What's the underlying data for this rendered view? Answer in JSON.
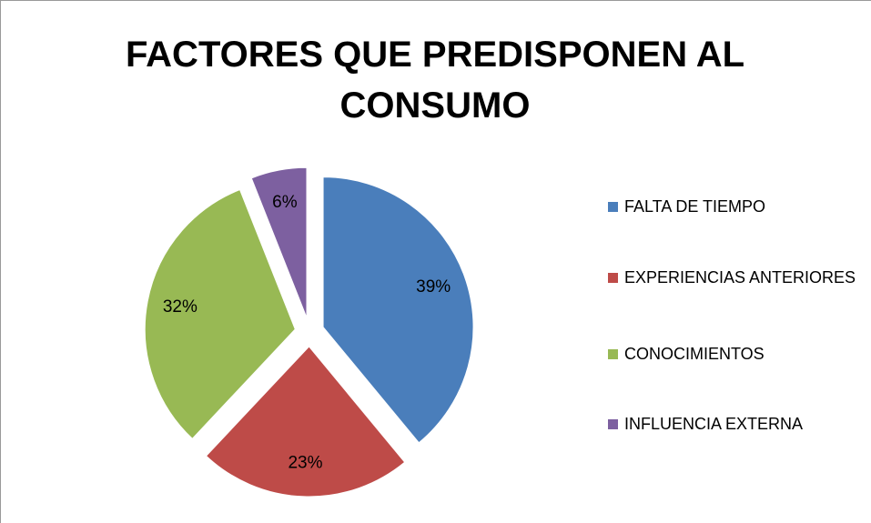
{
  "chart_data": {
    "type": "pie",
    "title": "FACTORES QUE PREDISPONEN AL CONSUMO",
    "categories": [
      "FALTA DE TIEMPO",
      "EXPERIENCIAS ANTERIORES",
      "CONOCIMIENTOS",
      "INFLUENCIA EXTERNA"
    ],
    "values": [
      39,
      23,
      32,
      6
    ],
    "value_labels": [
      "39%",
      "23%",
      "32%",
      "6%"
    ],
    "colors": [
      "#4a7ebb",
      "#be4b48",
      "#98b954",
      "#7d60a0"
    ],
    "legend": "right"
  }
}
